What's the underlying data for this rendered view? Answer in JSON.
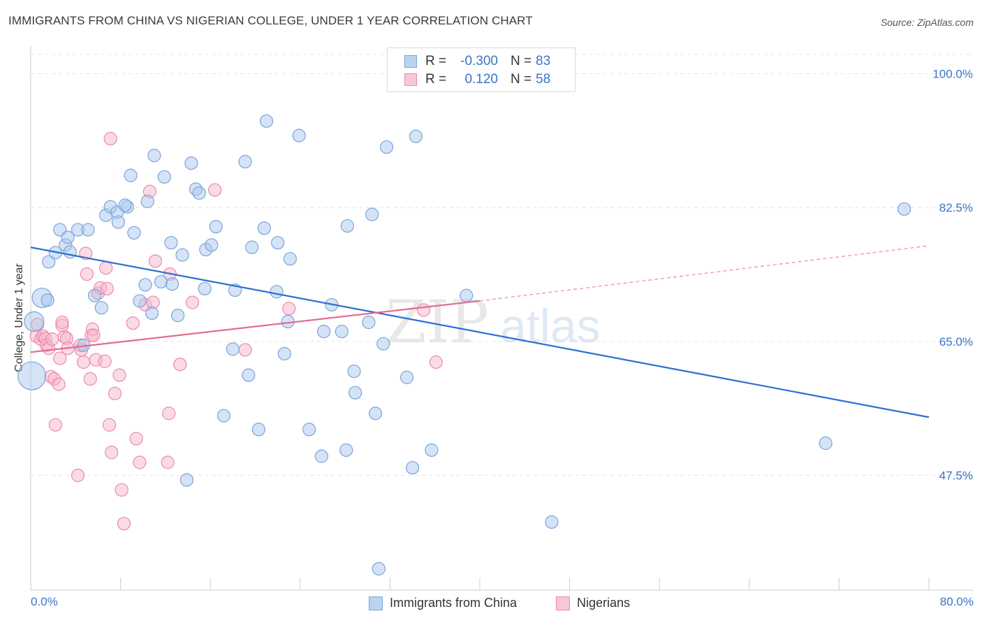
{
  "header": {
    "title": "IMMIGRANTS FROM CHINA VS NIGERIAN COLLEGE, UNDER 1 YEAR CORRELATION CHART",
    "source": "Source: ZipAtlas.com"
  },
  "colors": {
    "china_fill": "#a9c8ee",
    "china_stroke": "#7ba4d8",
    "china_line": "#2a6fcf",
    "nigeria_fill": "#f5b8cc",
    "nigeria_stroke": "#e98aab",
    "nigeria_line": "#e36b94",
    "axis_value_text": "#3b73c4",
    "grid": "#e3e3e3"
  },
  "legend_top": {
    "rows": [
      {
        "r_label": "R =",
        "r_value": "-0.300",
        "n_label": "N =",
        "n_value": "83"
      },
      {
        "r_label": "R =",
        "r_value": "0.120",
        "n_label": "N =",
        "n_value": "58"
      }
    ]
  },
  "legend_bottom": {
    "china": "Immigrants from China",
    "nigeria": "Nigerians"
  },
  "watermark": {
    "zip": "ZIP",
    "atlas": "atlas"
  },
  "chart_data": {
    "type": "scatter",
    "title": "IMMIGRANTS FROM CHINA VS NIGERIAN COLLEGE, UNDER 1 YEAR CORRELATION CHART",
    "xlabel": "",
    "ylabel": "College, Under 1 year",
    "xlim": [
      0,
      80
    ],
    "ylim": [
      32.5,
      102.5
    ],
    "x_tick_labels": [
      "0.0%",
      "80.0%"
    ],
    "y_ticks": [
      47.5,
      65.0,
      82.5,
      100.0
    ],
    "y_tick_labels": [
      "47.5%",
      "65.0%",
      "82.5%",
      "100.0%"
    ],
    "grid": true,
    "legend_placement": "top-center",
    "series": [
      {
        "name": "Immigrants from China",
        "color": "#a9c8ee",
        "trend": {
          "x": [
            0,
            80
          ],
          "y": [
            77.3,
            55.1
          ]
        },
        "points": [
          {
            "x": 0.1,
            "y": 60.5,
            "big": 2
          },
          {
            "x": 0.3,
            "y": 67.6,
            "big": 1
          },
          {
            "x": 1.0,
            "y": 70.7,
            "big": 1
          },
          {
            "x": 1.5,
            "y": 70.4
          },
          {
            "x": 1.6,
            "y": 75.4
          },
          {
            "x": 2.2,
            "y": 76.6
          },
          {
            "x": 2.6,
            "y": 79.6
          },
          {
            "x": 3.1,
            "y": 77.6
          },
          {
            "x": 3.3,
            "y": 78.6
          },
          {
            "x": 3.5,
            "y": 76.7
          },
          {
            "x": 4.2,
            "y": 79.6
          },
          {
            "x": 5.1,
            "y": 79.6
          },
          {
            "x": 4.7,
            "y": 64.5
          },
          {
            "x": 5.7,
            "y": 71.0
          },
          {
            "x": 6.7,
            "y": 81.5
          },
          {
            "x": 6.3,
            "y": 69.4
          },
          {
            "x": 7.1,
            "y": 82.6
          },
          {
            "x": 7.7,
            "y": 81.9
          },
          {
            "x": 7.8,
            "y": 80.6
          },
          {
            "x": 8.6,
            "y": 82.6
          },
          {
            "x": 8.4,
            "y": 82.8
          },
          {
            "x": 8.9,
            "y": 86.7
          },
          {
            "x": 9.2,
            "y": 79.2
          },
          {
            "x": 9.7,
            "y": 70.3
          },
          {
            "x": 10.2,
            "y": 72.4
          },
          {
            "x": 10.4,
            "y": 83.3
          },
          {
            "x": 10.8,
            "y": 68.7
          },
          {
            "x": 11.0,
            "y": 89.3
          },
          {
            "x": 11.9,
            "y": 86.5
          },
          {
            "x": 11.6,
            "y": 72.8
          },
          {
            "x": 12.6,
            "y": 72.5
          },
          {
            "x": 12.5,
            "y": 77.9
          },
          {
            "x": 13.1,
            "y": 68.4
          },
          {
            "x": 13.5,
            "y": 76.3
          },
          {
            "x": 13.9,
            "y": 46.9
          },
          {
            "x": 14.3,
            "y": 88.3
          },
          {
            "x": 14.7,
            "y": 84.9
          },
          {
            "x": 15.0,
            "y": 84.4
          },
          {
            "x": 15.5,
            "y": 71.9
          },
          {
            "x": 15.6,
            "y": 77.0
          },
          {
            "x": 16.1,
            "y": 77.6
          },
          {
            "x": 16.5,
            "y": 80.0
          },
          {
            "x": 17.2,
            "y": 55.3
          },
          {
            "x": 18.0,
            "y": 64.0
          },
          {
            "x": 18.2,
            "y": 71.7
          },
          {
            "x": 19.1,
            "y": 88.5
          },
          {
            "x": 19.4,
            "y": 60.6
          },
          {
            "x": 19.7,
            "y": 77.3
          },
          {
            "x": 20.3,
            "y": 53.5
          },
          {
            "x": 20.8,
            "y": 79.8
          },
          {
            "x": 21.0,
            "y": 93.8
          },
          {
            "x": 21.9,
            "y": 71.5
          },
          {
            "x": 22.0,
            "y": 77.9
          },
          {
            "x": 22.6,
            "y": 63.4
          },
          {
            "x": 22.9,
            "y": 67.6
          },
          {
            "x": 23.1,
            "y": 75.8
          },
          {
            "x": 23.9,
            "y": 91.9
          },
          {
            "x": 24.8,
            "y": 53.5
          },
          {
            "x": 25.9,
            "y": 50.0
          },
          {
            "x": 26.1,
            "y": 66.3
          },
          {
            "x": 26.8,
            "y": 69.8
          },
          {
            "x": 27.7,
            "y": 66.3
          },
          {
            "x": 28.2,
            "y": 80.1
          },
          {
            "x": 28.1,
            "y": 50.8
          },
          {
            "x": 28.8,
            "y": 61.1
          },
          {
            "x": 28.9,
            "y": 58.3
          },
          {
            "x": 30.1,
            "y": 67.5
          },
          {
            "x": 30.4,
            "y": 81.6
          },
          {
            "x": 30.7,
            "y": 55.6
          },
          {
            "x": 31.0,
            "y": 35.3
          },
          {
            "x": 31.4,
            "y": 64.7
          },
          {
            "x": 31.7,
            "y": 90.4
          },
          {
            "x": 33.5,
            "y": 60.3
          },
          {
            "x": 34.0,
            "y": 48.5
          },
          {
            "x": 34.3,
            "y": 91.8
          },
          {
            "x": 35.7,
            "y": 50.8
          },
          {
            "x": 38.8,
            "y": 71.0
          },
          {
            "x": 46.4,
            "y": 41.4
          },
          {
            "x": 70.8,
            "y": 51.7
          },
          {
            "x": 77.8,
            "y": 82.3
          }
        ]
      },
      {
        "name": "Nigerians",
        "color": "#f5b8cc",
        "trend": {
          "x": [
            0,
            40
          ],
          "y": [
            63.6,
            70.3
          ]
        },
        "dashed_trend": {
          "x": [
            40,
            80
          ],
          "y": [
            70.3,
            77.5
          ]
        },
        "points": [
          {
            "x": 0.5,
            "y": 65.7
          },
          {
            "x": 0.6,
            "y": 67.2
          },
          {
            "x": 0.9,
            "y": 65.3
          },
          {
            "x": 1.1,
            "y": 65.7
          },
          {
            "x": 1.3,
            "y": 65.4
          },
          {
            "x": 1.4,
            "y": 64.5
          },
          {
            "x": 1.6,
            "y": 64.1
          },
          {
            "x": 1.9,
            "y": 65.3
          },
          {
            "x": 1.8,
            "y": 60.4
          },
          {
            "x": 2.1,
            "y": 60.1
          },
          {
            "x": 2.2,
            "y": 54.1
          },
          {
            "x": 2.5,
            "y": 59.4
          },
          {
            "x": 2.6,
            "y": 62.8
          },
          {
            "x": 2.8,
            "y": 67.1
          },
          {
            "x": 2.8,
            "y": 67.5
          },
          {
            "x": 3.0,
            "y": 65.6
          },
          {
            "x": 3.2,
            "y": 65.4
          },
          {
            "x": 3.3,
            "y": 64.1
          },
          {
            "x": 4.2,
            "y": 47.5
          },
          {
            "x": 4.4,
            "y": 64.5
          },
          {
            "x": 4.5,
            "y": 63.9
          },
          {
            "x": 4.7,
            "y": 62.3
          },
          {
            "x": 4.9,
            "y": 76.5
          },
          {
            "x": 5.0,
            "y": 73.8
          },
          {
            "x": 5.3,
            "y": 60.1
          },
          {
            "x": 5.4,
            "y": 65.8
          },
          {
            "x": 5.5,
            "y": 66.6
          },
          {
            "x": 5.6,
            "y": 65.8
          },
          {
            "x": 5.8,
            "y": 62.6
          },
          {
            "x": 6.0,
            "y": 71.3
          },
          {
            "x": 6.2,
            "y": 72.0
          },
          {
            "x": 6.6,
            "y": 62.4
          },
          {
            "x": 6.7,
            "y": 74.6
          },
          {
            "x": 6.8,
            "y": 71.9
          },
          {
            "x": 7.0,
            "y": 54.1
          },
          {
            "x": 7.1,
            "y": 91.5
          },
          {
            "x": 7.2,
            "y": 50.5
          },
          {
            "x": 7.5,
            "y": 58.2
          },
          {
            "x": 7.9,
            "y": 60.6
          },
          {
            "x": 8.1,
            "y": 45.6
          },
          {
            "x": 8.3,
            "y": 41.2
          },
          {
            "x": 9.1,
            "y": 67.4
          },
          {
            "x": 9.4,
            "y": 52.3
          },
          {
            "x": 9.7,
            "y": 49.2
          },
          {
            "x": 10.2,
            "y": 69.8
          },
          {
            "x": 10.6,
            "y": 84.6
          },
          {
            "x": 10.9,
            "y": 70.1
          },
          {
            "x": 11.1,
            "y": 75.5
          },
          {
            "x": 12.2,
            "y": 49.2
          },
          {
            "x": 12.3,
            "y": 55.6
          },
          {
            "x": 12.4,
            "y": 73.8
          },
          {
            "x": 13.3,
            "y": 62.0
          },
          {
            "x": 14.4,
            "y": 70.1
          },
          {
            "x": 16.4,
            "y": 84.8
          },
          {
            "x": 19.1,
            "y": 63.9
          },
          {
            "x": 23.0,
            "y": 69.3
          },
          {
            "x": 35.0,
            "y": 69.1
          },
          {
            "x": 36.1,
            "y": 62.3
          }
        ]
      }
    ]
  }
}
